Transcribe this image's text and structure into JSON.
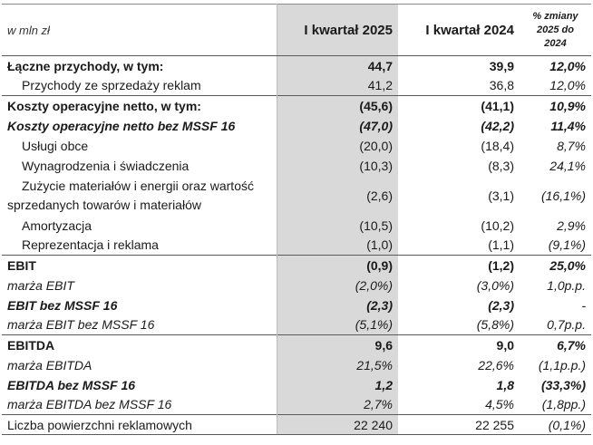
{
  "header": {
    "unit": "w mln zł",
    "col_2025": "I kwartał 2025",
    "col_2024": "I kwartał 2024",
    "col_change_line1": "% zmiany",
    "col_change_line2": "2025 do 2024"
  },
  "rows": [
    {
      "label": "Łączne przychody, w tym:",
      "v2025": "44,7",
      "v2024": "39,9",
      "change": "12,0%"
    },
    {
      "label": "Przychody ze sprzedaży reklam",
      "v2025": "41,2",
      "v2024": "36,8",
      "change": "12,0%"
    },
    {
      "label": "Koszty operacyjne netto, w tym:",
      "v2025": "(45,6)",
      "v2024": "(41,1)",
      "change": "10,9%"
    },
    {
      "label": "Koszty operacyjne netto bez MSSF 16",
      "v2025": "(47,0)",
      "v2024": "(42,2)",
      "change": "11,4%"
    },
    {
      "label": "Usługi obce",
      "v2025": "(20,0)",
      "v2024": "(18,4)",
      "change": "8,7%"
    },
    {
      "label": "Wynagrodzenia i świadczenia",
      "v2025": "(10,3)",
      "v2024": "(8,3)",
      "change": "24,1%"
    },
    {
      "label": "Zużycie materiałów i energii oraz wartość sprzedanych towarów i materiałów",
      "v2025": "(2,6)",
      "v2024": "(3,1)",
      "change": "(16,1%)"
    },
    {
      "label": "Amortyzacja",
      "v2025": "(10,5)",
      "v2024": "(10,2)",
      "change": "2,9%"
    },
    {
      "label": "Reprezentacja i reklama",
      "v2025": "(1,0)",
      "v2024": "(1,1)",
      "change": "(9,1%)"
    },
    {
      "label": "EBIT",
      "v2025": "(0,9)",
      "v2024": "(1,2)",
      "change": "25,0%"
    },
    {
      "label": "marża EBIT",
      "v2025": "(2,0%)",
      "v2024": "(3,0%)",
      "change": "1,0p.p."
    },
    {
      "label": "EBIT bez MSSF 16",
      "v2025": "(2,3)",
      "v2024": "(2,3)",
      "change": "-"
    },
    {
      "label": "marża EBIT bez MSSF 16",
      "v2025": "(5,1%)",
      "v2024": "(5,8%)",
      "change": "0,7p.p."
    },
    {
      "label": "EBITDA",
      "v2025": "9,6",
      "v2024": "9,0",
      "change": "6,7%"
    },
    {
      "label": "marża EBITDA",
      "v2025": "21,5%",
      "v2024": "22,6%",
      "change": "(1,1p.p.)"
    },
    {
      "label": "EBITDA bez MSSF 16",
      "v2025": "1,2",
      "v2024": "1,8",
      "change": "(33,3%)"
    },
    {
      "label": "marża EBITDA bez MSSF 16",
      "v2025": "2,7%",
      "v2024": "4,5%",
      "change": "(1,8pp.)"
    },
    {
      "label": "Liczba powierzchni reklamowych",
      "v2025": "22 240",
      "v2024": "22 255",
      "change": "(0,1%)"
    }
  ]
}
